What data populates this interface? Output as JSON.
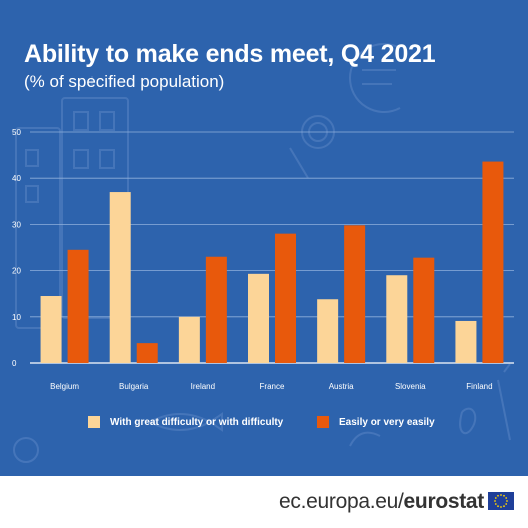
{
  "header": {
    "title": "Ability to make ends meet, Q4 2021",
    "subtitle": "(% of specified population)"
  },
  "colors": {
    "background": "#2d63ad",
    "series_1": "#fcd598",
    "series_2": "#e8590c",
    "text": "#ffffff"
  },
  "footer": {
    "domain_text": "ec.europa.eu/",
    "brand_text": "eurostat",
    "flag_icon": "eu-flag-icon"
  },
  "chart_data": {
    "type": "bar",
    "title": "Ability to make ends meet, Q4 2021",
    "subtitle": "(% of specified population)",
    "xlabel": "",
    "ylabel": "",
    "ylim": [
      0,
      50
    ],
    "yticks": [
      0,
      10,
      20,
      30,
      40,
      50
    ],
    "grid": true,
    "legend_position": "bottom",
    "categories": [
      "Belgium",
      "Bulgaria",
      "Ireland",
      "France",
      "Austria",
      "Slovenia",
      "Finland"
    ],
    "series": [
      {
        "name": "With great difficulty or with difficulty",
        "color": "#fcd598",
        "values": [
          14.5,
          37.0,
          10.0,
          19.3,
          13.8,
          19.0,
          9.1
        ]
      },
      {
        "name": "Easily or very easily",
        "color": "#e8590c",
        "values": [
          24.5,
          4.3,
          23.0,
          28.0,
          29.8,
          22.8,
          43.6
        ]
      }
    ]
  }
}
